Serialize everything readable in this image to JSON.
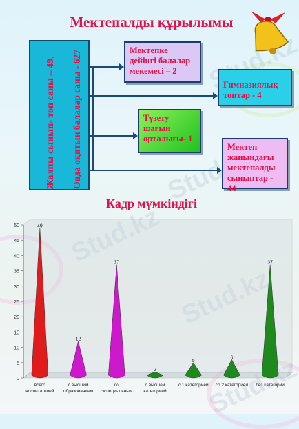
{
  "title": "Мектепалды құрылымы",
  "vertical_box": {
    "line1": "Жалпы сынып- топ саны – 49,",
    "line2": "Онда оқитын балалар саны - 627"
  },
  "cards": {
    "c1": "Мектепке дейінгі балалар мекемесі – 2",
    "c2": "Гимназиялық топтар - 4",
    "c3": "Түзету шағын орталығы- 1",
    "c4": "Мектеп жанындағы мектепалды сыныптар - 44"
  },
  "subtitle": "Кадр мүмкіндігі",
  "watermark": "Stud.kz",
  "colors": {
    "title": "#e0124a",
    "box": "#19b7d8",
    "red": "#e01b1b",
    "magenta": "#cc19cc",
    "green": "#1e8a1e"
  },
  "chart_data": {
    "type": "bar",
    "shape": "cone",
    "categories": [
      "всего воспитателей",
      "с высшим образованием",
      "со с\\специальным",
      "с высшей категорией",
      "с 1 категорией",
      "со 2 категорией",
      "без категории"
    ],
    "values": [
      49,
      12,
      37,
      2,
      5,
      6,
      37
    ],
    "colors": [
      "#e01b1b",
      "#cc19cc",
      "#cc19cc",
      "#1e8a1e",
      "#1e8a1e",
      "#1e8a1e",
      "#1e8a1e"
    ],
    "ylim": [
      0,
      50
    ],
    "yticks": [
      0,
      5,
      10,
      15,
      20,
      25,
      30,
      35,
      40,
      45,
      50
    ],
    "grid": false
  }
}
